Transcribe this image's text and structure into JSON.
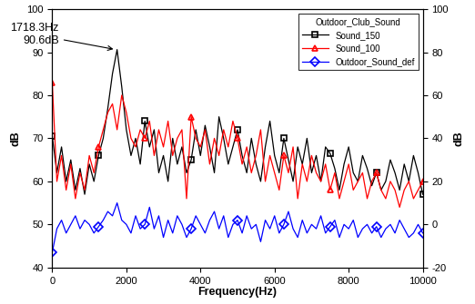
{
  "chart_data": {
    "type": "line",
    "x_label": "Frequency(Hz)",
    "y_label": "dB",
    "y2_label": "dB",
    "legend_title": "Outdoor_Club_Sound",
    "legend": "upper right",
    "xlim": [
      0,
      10000
    ],
    "xticks": [
      0,
      2000,
      4000,
      6000,
      8000,
      10000
    ],
    "ylim": [
      40,
      100
    ],
    "yticks": [
      40,
      50,
      60,
      70,
      80,
      90,
      100
    ],
    "y2lim": [
      -20,
      100
    ],
    "y2ticks": [
      -20,
      0,
      20,
      40,
      60,
      80,
      100
    ],
    "x": [
      0,
      125,
      250,
      375,
      500,
      625,
      750,
      875,
      1000,
      1125,
      1250,
      1375,
      1500,
      1625,
      1750,
      1875,
      2000,
      2125,
      2250,
      2375,
      2500,
      2625,
      2750,
      2875,
      3000,
      3125,
      3250,
      3375,
      3500,
      3625,
      3750,
      3875,
      4000,
      4125,
      4250,
      4375,
      4500,
      4625,
      4750,
      4875,
      5000,
      5125,
      5250,
      5375,
      5500,
      5625,
      5750,
      5875,
      6000,
      6125,
      6250,
      6375,
      6500,
      6625,
      6750,
      6875,
      7000,
      7125,
      7250,
      7375,
      7500,
      7625,
      7750,
      7875,
      8000,
      8125,
      8250,
      8375,
      8500,
      8625,
      8750,
      8875,
      9000,
      9125,
      9250,
      9375,
      9500,
      9625,
      9750,
      9875,
      10000
    ],
    "series": [
      {
        "name": "Sound_150",
        "color": "#000000",
        "marker": "square",
        "axis": "y",
        "values": [
          70.5,
          62,
          68,
          60,
          65,
          58,
          63,
          57,
          64,
          60,
          66,
          70,
          77,
          85,
          90.6,
          82,
          72,
          66,
          70,
          64,
          74,
          68,
          72,
          62,
          66,
          60,
          70,
          64,
          68,
          62,
          65,
          72,
          66,
          73,
          68,
          62,
          75,
          70,
          64,
          68,
          72,
          66,
          62,
          70,
          64,
          60,
          68,
          74,
          66,
          62,
          70,
          65,
          60,
          68,
          64,
          70,
          62,
          66,
          60,
          68,
          66.5,
          63,
          58,
          64,
          68,
          62,
          60,
          66,
          63,
          59,
          62,
          58,
          60,
          65,
          62,
          58,
          64,
          60,
          66,
          62,
          57
        ]
      },
      {
        "name": "Sound_100",
        "color": "#ff0000",
        "marker": "triangle",
        "axis": "y",
        "values": [
          83,
          60,
          66,
          58,
          64,
          56,
          62,
          58,
          66,
          62,
          68,
          72,
          76,
          78,
          72,
          80,
          76,
          70,
          68,
          72,
          70,
          74,
          66,
          72,
          68,
          74,
          66,
          70,
          72,
          56,
          75,
          70,
          68,
          72,
          64,
          70,
          66,
          72,
          68,
          74,
          70,
          64,
          68,
          62,
          66,
          72,
          60,
          66,
          62,
          58,
          66,
          62,
          68,
          56,
          64,
          60,
          66,
          62,
          60,
          64,
          58,
          62,
          56,
          60,
          64,
          58,
          60,
          62,
          56,
          60,
          62,
          58,
          56,
          60,
          58,
          54,
          58,
          60,
          56,
          58,
          60
        ]
      },
      {
        "name": "Outdoor_Sound_def",
        "color": "#0000ff",
        "marker": "diamond",
        "axis": "y2",
        "values": [
          -13,
          -2,
          2,
          -4,
          0,
          4,
          -2,
          2,
          0,
          -4,
          -1,
          2,
          6,
          4,
          10,
          2,
          0,
          -4,
          4,
          -2,
          0,
          8,
          -2,
          4,
          -6,
          2,
          -4,
          4,
          0,
          -6,
          -2,
          4,
          0,
          -4,
          2,
          6,
          -2,
          4,
          -6,
          0,
          2,
          -4,
          4,
          -2,
          0,
          -8,
          2,
          -2,
          4,
          -4,
          0,
          6,
          -2,
          -6,
          2,
          -4,
          0,
          -2,
          4,
          -4,
          -1,
          2,
          -6,
          0,
          -2,
          2,
          -6,
          -2,
          0,
          -4,
          -1,
          -6,
          -2,
          0,
          -4,
          2,
          -2,
          -6,
          -4,
          0,
          -4
        ]
      }
    ],
    "annotations": [
      {
        "text": "1718.3Hz\n90.6dB",
        "x": 1718.3,
        "y": 90.6
      }
    ]
  }
}
